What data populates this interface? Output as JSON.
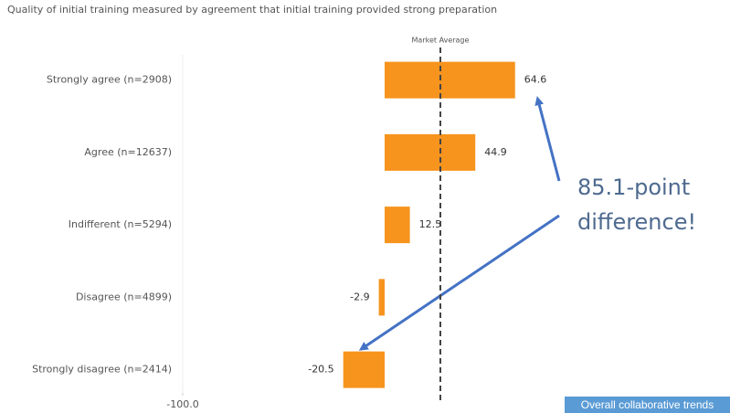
{
  "chart_data": {
    "type": "bar",
    "orientation": "horizontal",
    "title": "Quality of initial training measured by agreement that initial training provided strong preparation",
    "categories": [
      "Strongly agree (n=2908)",
      "Agree (n=12637)",
      "Indifferent (n=5294)",
      "Disagree (n=4899)",
      "Strongly disagree (n=2414)"
    ],
    "values": [
      64.6,
      44.9,
      12.5,
      -2.9,
      -20.5
    ],
    "color": "#f7941d",
    "xlim": [
      -100,
      100
    ],
    "xticks": [
      {
        "value": -100,
        "label": "-100.0"
      }
    ],
    "reference_line": {
      "label": "Market Average",
      "value": 27.6
    },
    "annotation": [
      "85.1-point",
      "difference!"
    ],
    "button": "Overall collaborative trends"
  }
}
